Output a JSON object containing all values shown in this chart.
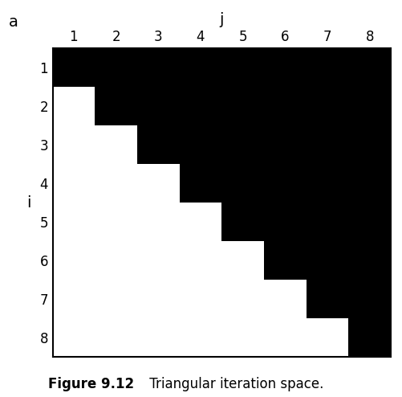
{
  "n": 8,
  "xlabel": "j",
  "ylabel": "i",
  "corner_label": "a",
  "i_ticks": [
    1,
    2,
    3,
    4,
    5,
    6,
    7,
    8
  ],
  "j_ticks": [
    1,
    2,
    3,
    4,
    5,
    6,
    7,
    8
  ],
  "black_color": "#000000",
  "white_color": "#ffffff",
  "bg_color": "#ffffff",
  "border_color": "#000000",
  "tick_fontsize": 12,
  "label_fontsize": 14,
  "caption_bold": "Figure 9.12",
  "caption_normal": " Triangular iteration space.",
  "caption_fontsize": 12
}
